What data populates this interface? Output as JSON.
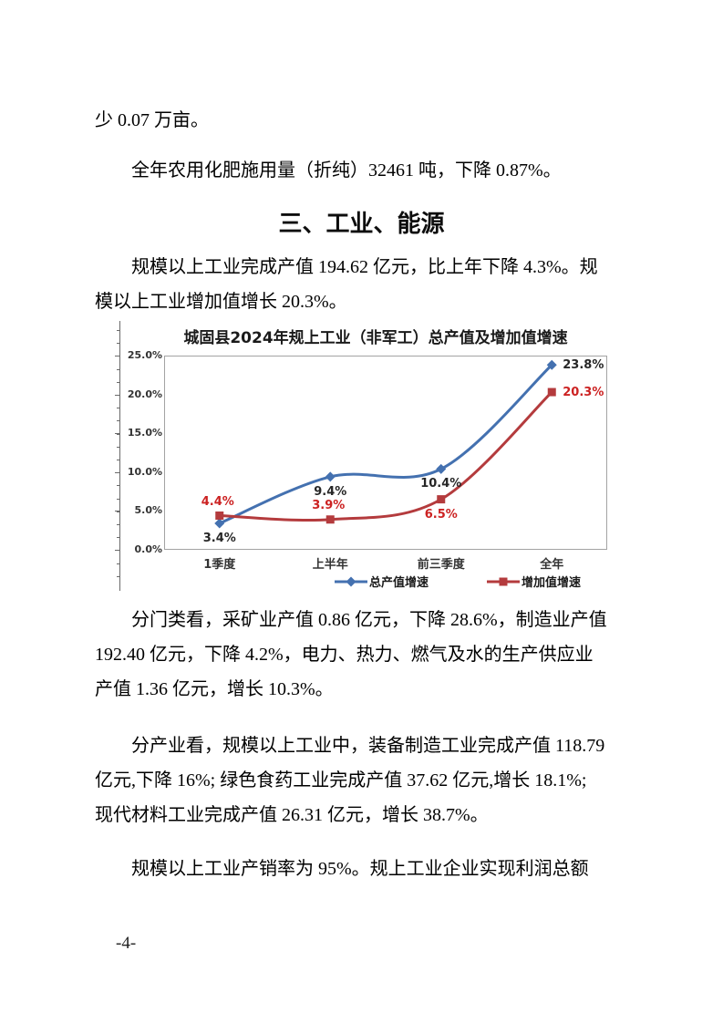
{
  "page": {
    "footer": "-4-"
  },
  "paragraphs": {
    "p1": {
      "lines": [
        "少 0.07 万亩。"
      ]
    },
    "p2": {
      "lines": [
        "全年农用化肥施用量（折纯）32461 吨，下降 0.87%。"
      ]
    },
    "heading": "三、工业、能源",
    "p3": {
      "lines": [
        "规模以上工业完成产值 194.62 亿元，比上年下降 4.3%。规",
        "模以上工业增加值增长 20.3%。"
      ]
    },
    "p4": {
      "lines": [
        "分门类看，采矿业产值 0.86 亿元，下降 28.6%，制造业产值",
        "192.40 亿元，下降 4.2%，电力、热力、燃气及水的生产供应业",
        "产值 1.36 亿元，增长 10.3%。"
      ]
    },
    "p5": {
      "lines": [
        "分产业看，规模以上工业中，装备制造工业完成产值 118.79",
        "亿元,下降 16%; 绿色食药工业完成产值 37.62 亿元,增长 18.1%;",
        "现代材料工业完成产值 26.31 亿元，增长 38.7%。"
      ]
    },
    "p6": {
      "lines": [
        "规模以上工业产销率为 95%。规上工业企业实现利润总额"
      ]
    }
  },
  "chart_data": {
    "type": "line",
    "title": "城固县2024年规上工业（非军工）总产值及增加值增速",
    "categories": [
      "1季度",
      "上半年",
      "前三季度",
      "全年"
    ],
    "series": [
      {
        "name": "总产值增速",
        "values": [
          3.4,
          9.4,
          10.4,
          23.8
        ],
        "color": "#4471b0",
        "marker": "diamond",
        "label_color": "#262626",
        "label_positions": [
          "below",
          "below",
          "below",
          "right"
        ]
      },
      {
        "name": "增加值增速",
        "values": [
          4.4,
          3.9,
          6.5,
          20.3
        ],
        "color": "#b43b3d",
        "marker": "square",
        "label_color": "#cc2222",
        "label_positions": [
          "above",
          "above",
          "below",
          "right"
        ]
      }
    ],
    "data_label_suffix": "%",
    "y_ticks": [
      "25.0%",
      "20.0%",
      "15.0%",
      "10.0%",
      "5.0%",
      "0.0%"
    ],
    "ylim": [
      0,
      25
    ],
    "grid": false,
    "legend_position": "bottom"
  }
}
